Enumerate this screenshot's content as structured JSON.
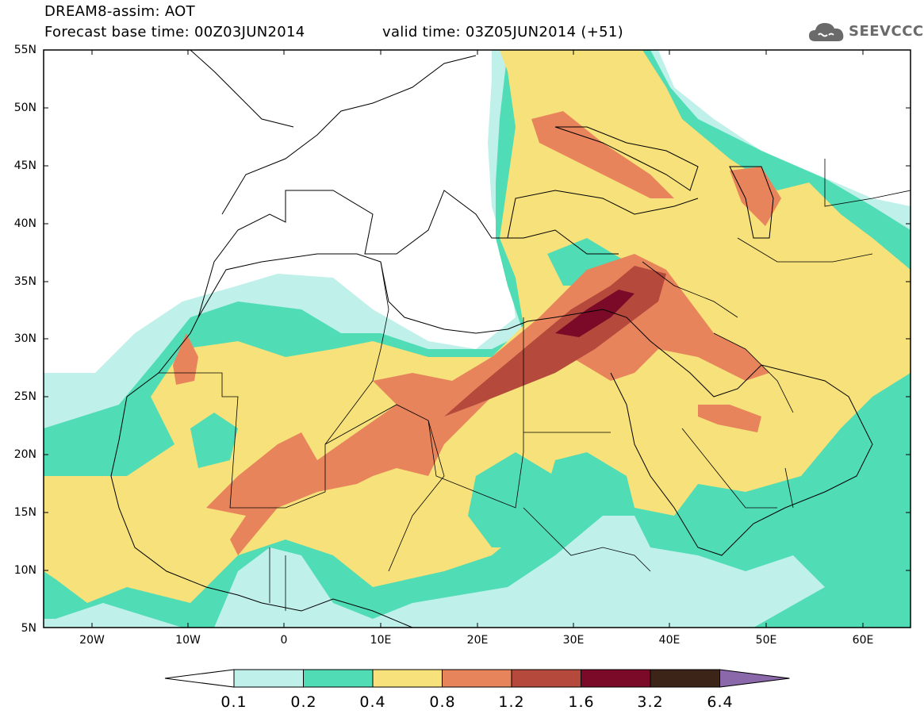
{
  "header": {
    "title": "DREAM8-assim: AOT",
    "base_time": "Forecast base time: 00Z03JUN2014",
    "valid_time": "valid time: 03Z05JUN2014 (+51)",
    "logo_text": "SEEVCCC",
    "logo_icon": "cloud-icon"
  },
  "map": {
    "lon_range": [
      -25,
      65
    ],
    "lat_range": [
      5,
      55
    ],
    "lat_labels": [
      "55N",
      "50N",
      "45N",
      "40N",
      "35N",
      "30N",
      "25N",
      "20N",
      "15N",
      "10N",
      "5N"
    ],
    "lon_labels": [
      "20W",
      "10W",
      "0",
      "10E",
      "20E",
      "30E",
      "40E",
      "50E",
      "60E"
    ]
  },
  "colorbar": {
    "labels": [
      "0.1",
      "0.2",
      "0.4",
      "0.8",
      "1.2",
      "1.6",
      "3.2",
      "6.4"
    ],
    "colors": [
      "#ffffff",
      "#bff0ea",
      "#50dcb4",
      "#f7e17a",
      "#e8845c",
      "#b54a3c",
      "#7a0a28",
      "#3c2418",
      "#8a68aa"
    ]
  }
}
